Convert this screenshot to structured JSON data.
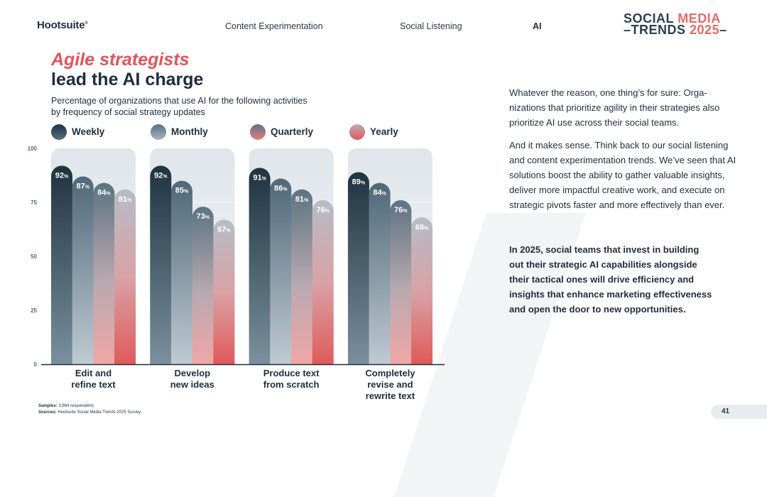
{
  "header": {
    "logo": "Hootsuite",
    "logo_mark": "®",
    "nav": [
      "Content Experimentation",
      "Social Listening",
      "AI"
    ],
    "active_nav": "AI",
    "brand_line1_a": "SOCIAL ",
    "brand_line1_b": "MEDIA",
    "brand_line2_a": "TRENDS ",
    "brand_line2_b": "2025"
  },
  "main": {
    "title_line1": "Agile strategists",
    "title_line2": "lead the AI charge"
  },
  "right": {
    "p1": "Whatever the reason, one thing’s for sure: Orga-nizations that prioritize agility in their strategies also prioritize AI use across their social teams.",
    "p2": "And it makes sense. Think back to our social listening and content experimentation trends. We’ve seen that AI solutions boost the ability to gather valuable insights, deliver more impactful creative work, and execute on strategic pivots faster and more effectively than ever.",
    "p3": "In 2025, social teams that invest in building out their strategic AI capabilities alongside their tactical ones will drive efficiency and insights that enhance marketing effectiveness and open the door to new opportunities."
  },
  "footer": {
    "samples_label": "Samples:",
    "samples_value": "3,864 respondents",
    "sources_label": "Sources:",
    "sources_value": "Hootsuite Social Media Trends 2025 Survey",
    "page_number": "41"
  },
  "colors": {
    "accent": "#e0545a",
    "dark": "#1f2d3d",
    "weekly_top": "#1f3340",
    "monthly_top": "#56707f",
    "quarterly_top": "#6a7d8c",
    "yearly_top": "#b8bcc4",
    "fade_bottom": "#e05a5a"
  },
  "chart_data": {
    "type": "bar",
    "title": "Percentage of organizations that use AI for the following activities by frequency of social strategy updates",
    "xlabel": "",
    "ylabel": "",
    "ylim": [
      0,
      100
    ],
    "yticks": [
      0,
      25,
      50,
      75,
      100
    ],
    "categories": [
      "Edit and\nrefine text",
      "Develop\nnew ideas",
      "Produce text\nfrom scratch",
      "Completely\nrevise and\nrewrite text"
    ],
    "value_suffix": "%",
    "series": [
      {
        "name": "Weekly",
        "values": [
          92,
          92,
          91,
          89
        ]
      },
      {
        "name": "Monthly",
        "values": [
          87,
          85,
          86,
          84
        ]
      },
      {
        "name": "Quarterly",
        "values": [
          84,
          73,
          81,
          76
        ]
      },
      {
        "name": "Yearly",
        "values": [
          81,
          67,
          76,
          68
        ]
      }
    ],
    "legend_position": "top"
  }
}
